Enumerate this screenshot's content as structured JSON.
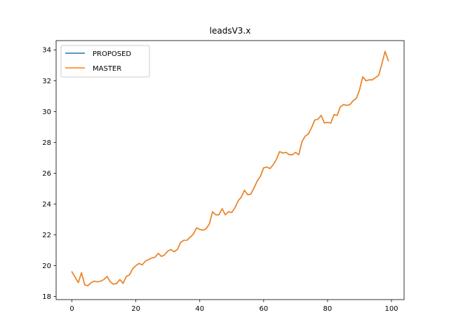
{
  "chart_data": {
    "type": "line",
    "title": "leadsV3.x",
    "xlabel": "",
    "ylabel": "",
    "xlim": [
      -4.95,
      103.95
    ],
    "ylim": [
      17.8,
      34.6
    ],
    "xticks": [
      0,
      20,
      40,
      60,
      80,
      100
    ],
    "yticks": [
      18,
      20,
      22,
      24,
      26,
      28,
      30,
      32,
      34
    ],
    "grid": false,
    "legend_position": "top-left",
    "x": [
      0,
      1,
      2,
      3,
      4,
      5,
      6,
      7,
      8,
      9,
      10,
      11,
      12,
      13,
      14,
      15,
      16,
      17,
      18,
      19,
      20,
      21,
      22,
      23,
      24,
      25,
      26,
      27,
      28,
      29,
      30,
      31,
      32,
      33,
      34,
      35,
      36,
      37,
      38,
      39,
      40,
      41,
      42,
      43,
      44,
      45,
      46,
      47,
      48,
      49,
      50,
      51,
      52,
      53,
      54,
      55,
      56,
      57,
      58,
      59,
      60,
      61,
      62,
      63,
      64,
      65,
      66,
      67,
      68,
      69,
      70,
      71,
      72,
      73,
      74,
      75,
      76,
      77,
      78,
      79,
      80,
      81,
      82,
      83,
      84,
      85,
      86,
      87,
      88,
      89,
      90,
      91,
      92,
      93,
      94,
      95,
      96,
      97,
      98,
      99
    ],
    "series": [
      {
        "name": "PROPOSED",
        "color": "#1f77b4",
        "values": [
          19.6,
          19.25,
          18.9,
          19.55,
          18.75,
          18.7,
          18.9,
          19.0,
          18.95,
          19.0,
          19.1,
          19.3,
          18.95,
          18.8,
          18.85,
          19.1,
          18.85,
          19.3,
          19.4,
          19.8,
          20.0,
          20.15,
          20.05,
          20.3,
          20.4,
          20.5,
          20.55,
          20.8,
          20.6,
          20.7,
          20.95,
          21.05,
          20.9,
          21.05,
          21.5,
          21.65,
          21.65,
          21.85,
          22.05,
          22.45,
          22.35,
          22.3,
          22.4,
          22.7,
          23.5,
          23.3,
          23.3,
          23.7,
          23.3,
          23.5,
          23.45,
          23.75,
          24.2,
          24.45,
          24.9,
          24.6,
          24.65,
          25.05,
          25.5,
          25.8,
          26.35,
          26.4,
          26.3,
          26.55,
          26.9,
          27.4,
          27.3,
          27.35,
          27.2,
          27.2,
          27.35,
          27.2,
          28.05,
          28.4,
          28.55,
          28.95,
          29.45,
          29.5,
          29.75,
          29.25,
          29.3,
          29.25,
          29.8,
          29.75,
          30.3,
          30.45,
          30.4,
          30.45,
          30.7,
          30.85,
          31.4,
          32.25,
          32.0,
          32.05,
          32.05,
          32.2,
          32.35,
          33.1,
          33.9,
          33.3
        ]
      },
      {
        "name": "MASTER",
        "color": "#ff7f0e",
        "values": [
          19.6,
          19.25,
          18.9,
          19.55,
          18.75,
          18.7,
          18.9,
          19.0,
          18.95,
          19.0,
          19.1,
          19.3,
          18.95,
          18.8,
          18.85,
          19.1,
          18.85,
          19.3,
          19.4,
          19.8,
          20.0,
          20.15,
          20.05,
          20.3,
          20.4,
          20.5,
          20.55,
          20.8,
          20.6,
          20.7,
          20.95,
          21.05,
          20.9,
          21.05,
          21.5,
          21.65,
          21.65,
          21.85,
          22.05,
          22.45,
          22.35,
          22.3,
          22.4,
          22.7,
          23.5,
          23.3,
          23.3,
          23.7,
          23.3,
          23.5,
          23.45,
          23.75,
          24.2,
          24.45,
          24.9,
          24.6,
          24.65,
          25.05,
          25.5,
          25.8,
          26.35,
          26.4,
          26.3,
          26.55,
          26.9,
          27.4,
          27.3,
          27.35,
          27.2,
          27.2,
          27.35,
          27.2,
          28.05,
          28.4,
          28.55,
          28.95,
          29.45,
          29.5,
          29.75,
          29.25,
          29.3,
          29.25,
          29.8,
          29.75,
          30.3,
          30.45,
          30.4,
          30.45,
          30.7,
          30.85,
          31.4,
          32.25,
          32.0,
          32.05,
          32.05,
          32.2,
          32.35,
          33.1,
          33.9,
          33.3
        ]
      }
    ]
  }
}
